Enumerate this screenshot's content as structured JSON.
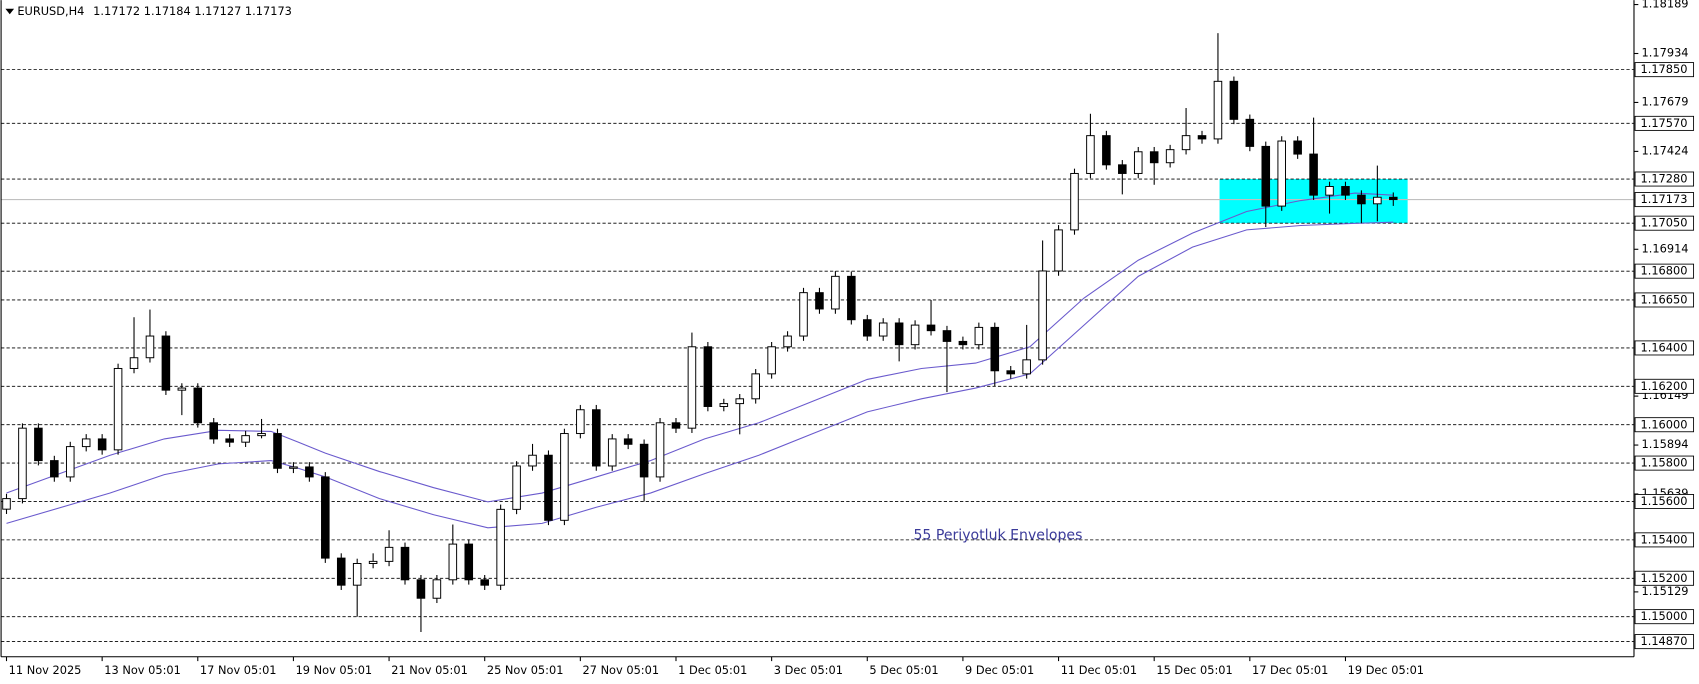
{
  "chart_data": {
    "type": "candlestick",
    "title": "EURUSD,H4",
    "quote": "1.17172 1.17184 1.17127 1.17173",
    "up_color": "#ffffff",
    "down_color": "#000000",
    "open": [
      1.1556,
      1.15615,
      1.15982,
      1.15813,
      1.15728,
      1.15886,
      1.15926,
      1.15869,
      1.16293,
      1.16349,
      1.16462,
      1.1618,
      1.16191,
      1.1601,
      1.15926,
      1.15909,
      1.15943,
      1.15954,
      1.15773,
      1.1578,
      1.15728,
      1.15305,
      1.15164,
      1.15277,
      1.15288,
      1.15361,
      1.15192,
      1.15096,
      1.15192,
      1.15378,
      1.15192,
      1.15164,
      1.15559,
      1.15785,
      1.15841,
      1.15502,
      1.15954,
      1.16078,
      1.15785,
      1.15926,
      1.15898,
      1.15728,
      1.1601,
      1.15982,
      1.16406,
      1.16095,
      1.1611,
      1.16135,
      1.16265,
      1.16406,
      1.16462,
      1.16688,
      1.16603,
      1.16773,
      1.16547,
      1.16462,
      1.1653,
      1.16417,
      1.16519,
      1.1649,
      1.16434,
      1.16417,
      1.16507,
      1.16281,
      1.16265,
      1.16338,
      1.16801,
      1.17015,
      1.17309,
      1.17506,
      1.17354,
      1.17309,
      1.17422,
      1.17365,
      1.17433,
      1.17506,
      1.17489,
      1.17789,
      1.17591,
      1.1745,
      1.17139,
      1.17478,
      1.1741,
      1.17196,
      1.17241,
      1.17196,
      1.17151,
      1.17185
    ],
    "high": [
      1.1564,
      1.16007,
      1.16007,
      1.15838,
      1.15911,
      1.15951,
      1.15951,
      1.16318,
      1.1656,
      1.166,
      1.16487,
      1.16216,
      1.16216,
      1.16035,
      1.15951,
      1.15968,
      1.1603,
      1.15979,
      1.15805,
      1.15805,
      1.15753,
      1.1533,
      1.15302,
      1.1533,
      1.1545,
      1.15386,
      1.15217,
      1.15217,
      1.1548,
      1.15403,
      1.15217,
      1.15584,
      1.1581,
      1.159,
      1.15866,
      1.15979,
      1.16103,
      1.16103,
      1.15951,
      1.15951,
      1.15923,
      1.16035,
      1.16035,
      1.1648,
      1.16431,
      1.16135,
      1.1616,
      1.1629,
      1.16431,
      1.16487,
      1.16713,
      1.16713,
      1.168,
      1.16798,
      1.16572,
      1.16555,
      1.16555,
      1.16544,
      1.1665,
      1.16515,
      1.16459,
      1.16532,
      1.16532,
      1.16306,
      1.1652,
      1.1696,
      1.1704,
      1.17334,
      1.1762,
      1.17531,
      1.17379,
      1.17447,
      1.17447,
      1.17458,
      1.1765,
      1.17531,
      1.1804,
      1.17814,
      1.17616,
      1.17475,
      1.17503,
      1.17503,
      1.176,
      1.17266,
      1.17266,
      1.17221,
      1.1735,
      1.1721
    ],
    "low": [
      1.15535,
      1.1559,
      1.15788,
      1.15703,
      1.15703,
      1.15861,
      1.15844,
      1.15844,
      1.16268,
      1.16324,
      1.16155,
      1.1605,
      1.15985,
      1.15901,
      1.15884,
      1.15884,
      1.15929,
      1.15748,
      1.15748,
      1.15703,
      1.1528,
      1.15139,
      1.15,
      1.15252,
      1.15263,
      1.15167,
      1.1492,
      1.15071,
      1.15167,
      1.15167,
      1.15139,
      1.15139,
      1.15534,
      1.1576,
      1.15477,
      1.15477,
      1.15929,
      1.1576,
      1.1576,
      1.15873,
      1.156,
      1.15703,
      1.15957,
      1.15957,
      1.1607,
      1.1607,
      1.1595,
      1.1611,
      1.1624,
      1.16381,
      1.16437,
      1.16578,
      1.16578,
      1.16522,
      1.16437,
      1.16437,
      1.1633,
      1.16392,
      1.16465,
      1.1617,
      1.16392,
      1.16392,
      1.162,
      1.1624,
      1.1624,
      1.16313,
      1.16776,
      1.1699,
      1.17284,
      1.17329,
      1.172,
      1.17284,
      1.1725,
      1.1734,
      1.17408,
      1.17464,
      1.17464,
      1.17566,
      1.17425,
      1.1703,
      1.17114,
      1.17385,
      1.17171,
      1.171,
      1.17171,
      1.1705,
      1.1706,
      1.1714
    ],
    "close": [
      1.15615,
      1.15982,
      1.15813,
      1.15728,
      1.15886,
      1.15926,
      1.15869,
      1.16293,
      1.16349,
      1.16462,
      1.1618,
      1.16191,
      1.1601,
      1.15926,
      1.15909,
      1.15943,
      1.15954,
      1.15773,
      1.1578,
      1.15728,
      1.15305,
      1.15164,
      1.15277,
      1.15288,
      1.15361,
      1.15192,
      1.15096,
      1.15192,
      1.15378,
      1.15192,
      1.15164,
      1.15559,
      1.15785,
      1.15841,
      1.15502,
      1.15954,
      1.16078,
      1.15785,
      1.15926,
      1.15898,
      1.15728,
      1.1601,
      1.15982,
      1.16406,
      1.16095,
      1.1611,
      1.16135,
      1.16265,
      1.16406,
      1.16462,
      1.16688,
      1.16603,
      1.16773,
      1.16547,
      1.16462,
      1.1653,
      1.16417,
      1.16519,
      1.1649,
      1.16434,
      1.16417,
      1.16507,
      1.16281,
      1.16265,
      1.16338,
      1.16801,
      1.17015,
      1.17309,
      1.17506,
      1.17354,
      1.17309,
      1.17422,
      1.17365,
      1.17433,
      1.17506,
      1.17489,
      1.17789,
      1.17591,
      1.1745,
      1.17139,
      1.17478,
      1.1741,
      1.17196,
      1.17241,
      1.17196,
      1.17151,
      1.17185,
      1.17173
    ],
    "envelopes": [
      {
        "color": "#6a5acd",
        "x": [
          0,
          6.5,
          9.9,
          13.3,
          16.6,
          18.3,
          20,
          23.4,
          26.8,
          30.2,
          33.6,
          37,
          40.4,
          43.8,
          47.2,
          50.6,
          54,
          57.4,
          60.8,
          64.2,
          67.6,
          71,
          74.4,
          77.8,
          81.2,
          84.6,
          87
        ],
        "values": [
          1.15644,
          1.15841,
          1.15926,
          1.15971,
          1.15965,
          1.15909,
          1.15852,
          1.15756,
          1.15672,
          1.15598,
          1.15644,
          1.15728,
          1.15813,
          1.15926,
          1.1601,
          1.16123,
          1.16236,
          1.16293,
          1.16321,
          1.16406,
          1.1666,
          1.16857,
          1.16998,
          1.17111,
          1.17168,
          1.17207,
          1.17196
        ]
      },
      {
        "color": "#6a5acd",
        "x": [
          0,
          6.5,
          9.9,
          13.3,
          16.6,
          18.3,
          20,
          23.4,
          26.8,
          30.2,
          33.6,
          37,
          40.4,
          43.8,
          47.2,
          50.6,
          54,
          57.4,
          60.8,
          64.2,
          67.6,
          71,
          74.4,
          77.8,
          81.2,
          84.6,
          87
        ],
        "values": [
          1.15486,
          1.15644,
          1.1574,
          1.15796,
          1.15813,
          1.15773,
          1.15728,
          1.15615,
          1.15531,
          1.15463,
          1.15486,
          1.1557,
          1.15644,
          1.15745,
          1.15841,
          1.15954,
          1.16067,
          1.16135,
          1.16191,
          1.16265,
          1.16519,
          1.16773,
          1.16925,
          1.17015,
          1.17038,
          1.17049,
          1.17055
        ]
      }
    ],
    "annotation": "55 Periyotluk Envelopes",
    "zone": {
      "x": [
        76.1,
        87.9
      ],
      "y": [
        1.1705,
        1.1728
      ],
      "color": "#00ffff"
    },
    "current_price": 1.17173,
    "levels": [
      {
        "value": 1.1785,
        "label": "1.17850"
      },
      {
        "value": 1.1757,
        "label": "1.17570"
      },
      {
        "value": 1.1728,
        "label": "1.17280"
      },
      {
        "value": 1.1705,
        "label": "1.17050"
      },
      {
        "value": 1.168,
        "label": "1.16800"
      },
      {
        "value": 1.1665,
        "label": "1.16650"
      },
      {
        "value": 1.164,
        "label": "1.16400"
      },
      {
        "value": 1.162,
        "label": "1.16200"
      },
      {
        "value": 1.16,
        "label": "1.16000"
      },
      {
        "value": 1.158,
        "label": "1.15800"
      },
      {
        "value": 1.156,
        "label": "1.15600"
      },
      {
        "value": 1.154,
        "label": "1.15400"
      },
      {
        "value": 1.152,
        "label": "1.15200"
      },
      {
        "value": 1.15,
        "label": "1.15000"
      },
      {
        "value": 1.1487,
        "label": "1.14870"
      }
    ],
    "ylim": [
      1.14791,
      1.18212
    ],
    "yticks": [
      1.18189,
      1.17934,
      1.17679,
      1.17424,
      1.16914,
      1.16149,
      1.15894,
      1.15639,
      1.15129
    ],
    "xlim": [
      -0.34,
      102.1
    ],
    "xticks": [
      {
        "value": 0,
        "label": "11 Nov 2025"
      },
      {
        "value": 6,
        "label": "13 Nov 05:01"
      },
      {
        "value": 12,
        "label": "17 Nov 05:01"
      },
      {
        "value": 18,
        "label": "19 Nov 05:01"
      },
      {
        "value": 24,
        "label": "21 Nov 05:01"
      },
      {
        "value": 30,
        "label": "25 Nov 05:01"
      },
      {
        "value": 36,
        "label": "27 Nov 05:01"
      },
      {
        "value": 42,
        "label": "1 Dec 05:01"
      },
      {
        "value": 48,
        "label": "3 Dec 05:01"
      },
      {
        "value": 54,
        "label": "5 Dec 05:01"
      },
      {
        "value": 60,
        "label": "9 Dec 05:01"
      },
      {
        "value": 66,
        "label": "11 Dec 05:01"
      },
      {
        "value": 72,
        "label": "15 Dec 05:01"
      },
      {
        "value": 78,
        "label": "17 Dec 05:01"
      },
      {
        "value": 84,
        "label": "19 Dec 05:01"
      }
    ]
  }
}
